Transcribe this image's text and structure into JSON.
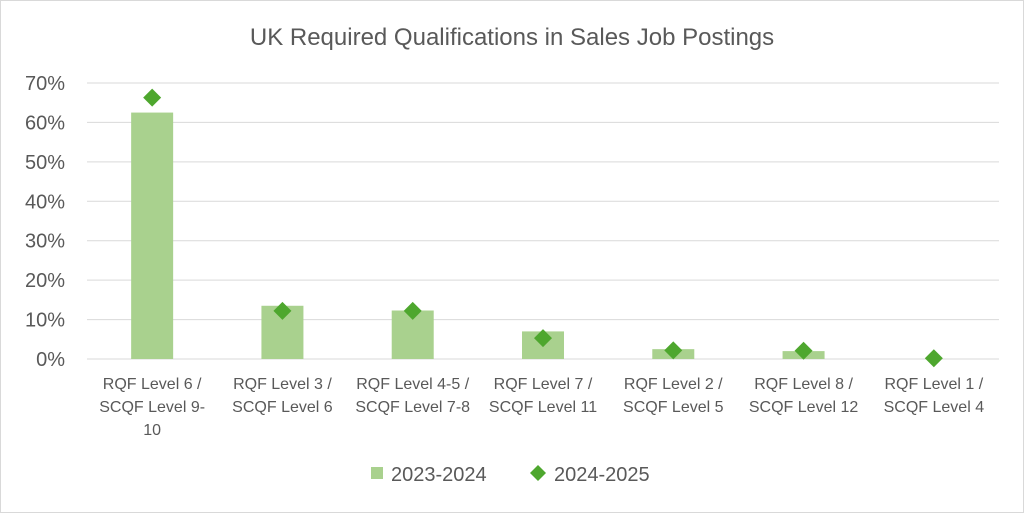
{
  "chart_data": {
    "type": "bar",
    "title": "UK Required Qualifications in Sales Job Postings",
    "xlabel": "",
    "ylabel": "",
    "ylim": [
      0,
      0.7
    ],
    "yticks": [
      "0%",
      "10%",
      "20%",
      "30%",
      "40%",
      "50%",
      "60%",
      "70%"
    ],
    "grid": true,
    "legend_position": "bottom",
    "categories": [
      [
        "RQF Level 6 /",
        "SCQF Level 9-",
        "10"
      ],
      [
        "RQF Level 3 /",
        "SCQF Level 6"
      ],
      [
        "RQF Level 4-5 /",
        "SCQF Level 7-8"
      ],
      [
        "RQF Level 7 /",
        "SCQF Level 11"
      ],
      [
        "RQF Level 2 /",
        "SCQF Level 5"
      ],
      [
        "RQF Level 8 /",
        "SCQF Level 12"
      ],
      [
        "RQF Level 1 /",
        "SCQF Level 4"
      ]
    ],
    "series": [
      {
        "name": "2023-2024",
        "kind": "bar",
        "color": "#a9d18e",
        "values": [
          0.625,
          0.135,
          0.123,
          0.07,
          0.025,
          0.02,
          0.0
        ]
      },
      {
        "name": "2024-2025",
        "kind": "marker",
        "marker": "diamond",
        "color": "#4ea72e",
        "values": [
          0.663,
          0.122,
          0.122,
          0.053,
          0.022,
          0.021,
          0.002
        ]
      }
    ]
  }
}
